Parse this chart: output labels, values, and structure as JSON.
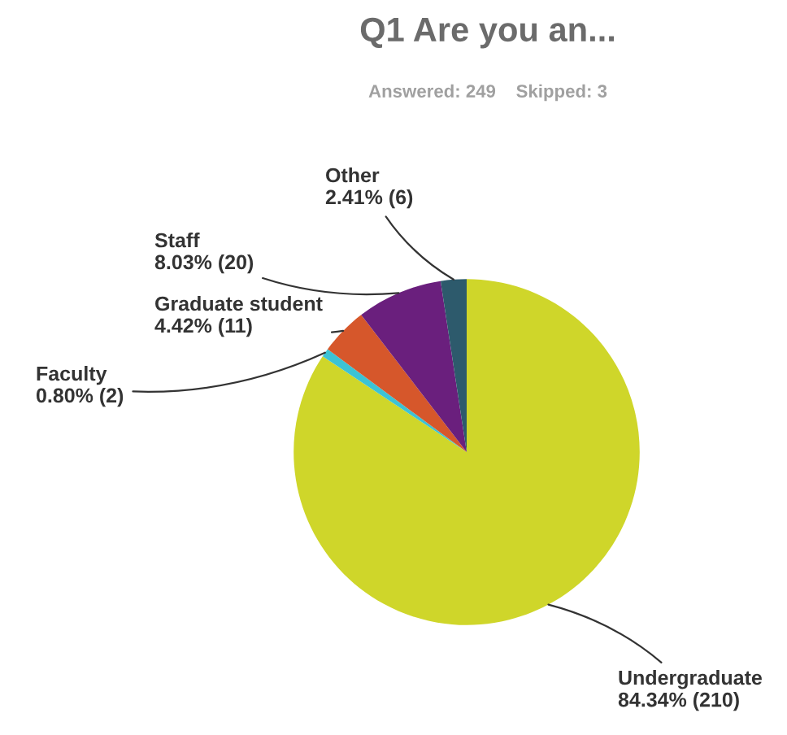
{
  "chart_data": {
    "type": "pie",
    "title": "Q1 Are you an...",
    "subtitle": "Answered: 249    Skipped: 3",
    "categories": [
      "Undergraduate",
      "Faculty",
      "Graduate student",
      "Staff",
      "Other"
    ],
    "values": [
      84.34,
      0.8,
      4.42,
      8.03,
      2.41
    ],
    "colors": [
      "#cfd62a",
      "#3cc3d5",
      "#d6572b",
      "#6a1f7d",
      "#2d5a6c"
    ],
    "value_labels": [
      "84.34% (210)",
      "0.80% (2)",
      "4.42% (11)",
      "8.03% (20)",
      "2.41% (6)"
    ]
  }
}
